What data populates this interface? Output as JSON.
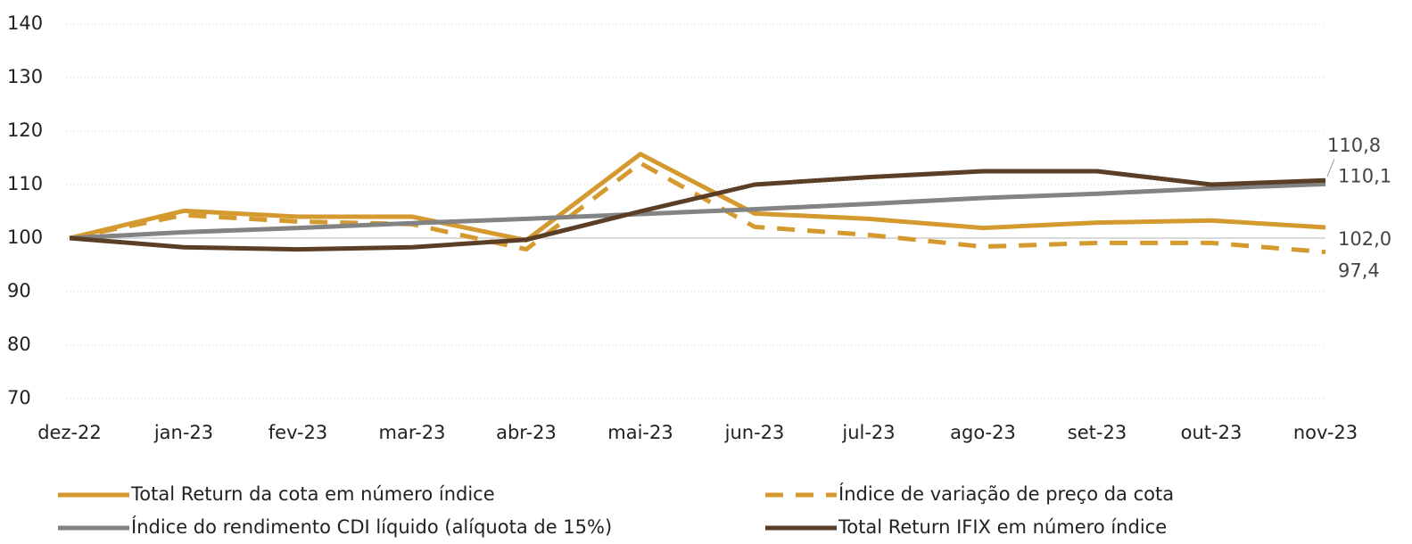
{
  "chart_data": {
    "type": "line",
    "categories": [
      "dez-22",
      "jan-23",
      "fev-23",
      "mar-23",
      "abr-23",
      "mai-23",
      "jun-23",
      "jul-23",
      "ago-23",
      "set-23",
      "out-23",
      "nov-23"
    ],
    "series": [
      {
        "name": "Total Return da cota em número índice",
        "color": "#d49a2f",
        "dash": false,
        "values": [
          100,
          105.1,
          104.0,
          104.0,
          99.6,
          115.7,
          104.6,
          103.6,
          101.9,
          102.9,
          103.3,
          102.0
        ],
        "value_labels": [
          null,
          null,
          null,
          null,
          null,
          null,
          null,
          null,
          null,
          null,
          null,
          "102,0"
        ]
      },
      {
        "name": "Índice de variação de preço da cota",
        "color": "#d49a2f",
        "dash": true,
        "values": [
          100,
          104.3,
          103.1,
          102.6,
          97.9,
          114.0,
          102.1,
          100.6,
          98.4,
          99.1,
          99.1,
          97.4
        ],
        "value_labels": [
          null,
          null,
          null,
          null,
          null,
          null,
          null,
          null,
          null,
          null,
          null,
          "97,4"
        ]
      },
      {
        "name": "Índice do rendimento CDI líquido (alíquota de 15%)",
        "color": "#838383",
        "dash": false,
        "values": [
          100,
          101.1,
          101.9,
          102.8,
          103.6,
          104.5,
          105.4,
          106.4,
          107.5,
          108.3,
          109.3,
          110.1
        ],
        "value_labels": [
          null,
          null,
          null,
          null,
          null,
          null,
          null,
          null,
          null,
          null,
          null,
          "110,1"
        ]
      },
      {
        "name": "Total Return IFIX em número índice",
        "color": "#5a3e25",
        "dash": false,
        "values": [
          100,
          98.3,
          97.9,
          98.3,
          99.7,
          105.0,
          110.0,
          111.4,
          112.5,
          112.5,
          110.0,
          110.8
        ],
        "value_labels": [
          null,
          null,
          null,
          null,
          null,
          null,
          null,
          null,
          null,
          null,
          null,
          "110,8"
        ]
      }
    ],
    "ylim": [
      70,
      140
    ],
    "yticks": [
      70,
      80,
      90,
      100,
      110,
      120,
      130,
      140
    ],
    "grid": true,
    "reference_line": 100,
    "legend": "bottom"
  }
}
